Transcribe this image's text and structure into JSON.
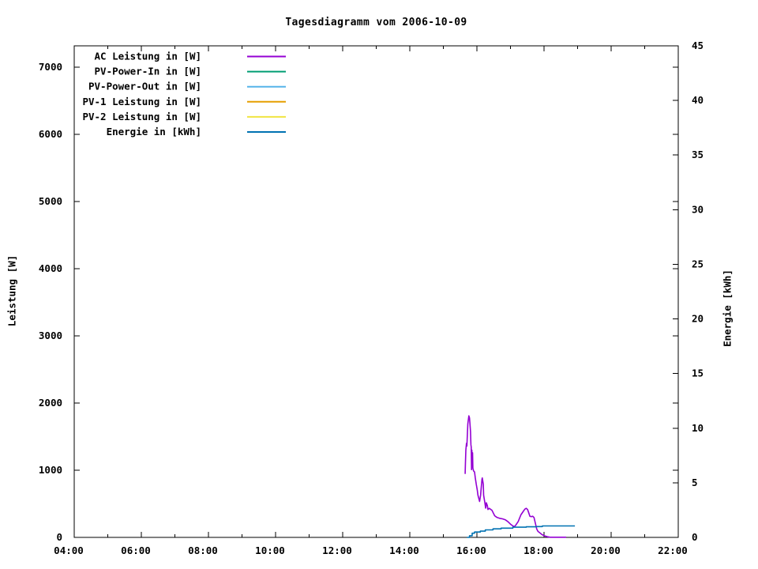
{
  "chart_data": {
    "type": "line",
    "title": "Tagesdiagramm vom 2006-10-09",
    "grid": false,
    "legend_position": "top-left-inside",
    "x_axis": {
      "range_hours": [
        4,
        22
      ],
      "major_tick_hours": [
        4,
        6,
        8,
        10,
        12,
        14,
        16,
        18,
        20,
        22
      ],
      "major_tick_labels": [
        "04:00",
        "06:00",
        "08:00",
        "10:00",
        "12:00",
        "14:00",
        "16:00",
        "18:00",
        "20:00",
        "22:00"
      ],
      "minor_tick_hours": [
        5,
        7,
        9,
        11,
        13,
        15,
        17,
        19,
        21
      ]
    },
    "y_left": {
      "label": "Leistung [W]",
      "ticks": [
        0,
        1000,
        2000,
        3000,
        4000,
        5000,
        6000,
        7000
      ],
      "range": [
        0,
        7320
      ]
    },
    "y_right": {
      "label": "Energie [kWh]",
      "ticks": [
        0,
        5,
        10,
        15,
        20,
        25,
        30,
        35,
        40,
        45
      ],
      "range": [
        0,
        45
      ]
    },
    "legend": [
      {
        "label": "AC Leistung in [W]",
        "color": "#9400d3"
      },
      {
        "label": "PV-Power-In in [W]",
        "color": "#009e73"
      },
      {
        "label": "PV-Power-Out in [W]",
        "color": "#56b4e9"
      },
      {
        "label": "PV-1 Leistung in [W]",
        "color": "#e69f00"
      },
      {
        "label": "PV-2 Leistung in [W]",
        "color": "#f0e442"
      },
      {
        "label": "Energie in [kWh]",
        "color": "#0072b2"
      }
    ],
    "series": [
      {
        "id": "ac-leistung",
        "name": "AC Leistung in [W]",
        "color": "#9400d3",
        "axis": "left",
        "interpolation": "linear",
        "points": [
          [
            15.65,
            945
          ],
          [
            15.66,
            1120
          ],
          [
            15.67,
            1300
          ],
          [
            15.69,
            1400
          ],
          [
            15.7,
            1360
          ],
          [
            15.73,
            1690
          ],
          [
            15.76,
            1810
          ],
          [
            15.78,
            1780
          ],
          [
            15.79,
            1710
          ],
          [
            15.81,
            1575
          ],
          [
            15.82,
            1380
          ],
          [
            15.83,
            1345
          ],
          [
            15.84,
            1010
          ],
          [
            15.85,
            1300
          ],
          [
            15.86,
            1050
          ],
          [
            15.87,
            1260
          ],
          [
            15.88,
            1030
          ],
          [
            15.9,
            990
          ],
          [
            15.93,
            975
          ],
          [
            15.95,
            890
          ],
          [
            15.98,
            790
          ],
          [
            16.01,
            710
          ],
          [
            16.03,
            630
          ],
          [
            16.06,
            575
          ],
          [
            16.08,
            535
          ],
          [
            16.11,
            630
          ],
          [
            16.12,
            690
          ],
          [
            16.15,
            865
          ],
          [
            16.16,
            885
          ],
          [
            16.19,
            790
          ],
          [
            16.2,
            630
          ],
          [
            16.23,
            535
          ],
          [
            16.26,
            435
          ],
          [
            16.28,
            515
          ],
          [
            16.31,
            475
          ],
          [
            16.33,
            415
          ],
          [
            16.37,
            433
          ],
          [
            16.45,
            402
          ],
          [
            16.53,
            323
          ],
          [
            16.6,
            296
          ],
          [
            16.68,
            284
          ],
          [
            16.76,
            276
          ],
          [
            16.84,
            264
          ],
          [
            16.92,
            237
          ],
          [
            17.0,
            198
          ],
          [
            17.07,
            171
          ],
          [
            17.11,
            159
          ],
          [
            17.15,
            178
          ],
          [
            17.23,
            237
          ],
          [
            17.31,
            335
          ],
          [
            17.39,
            394
          ],
          [
            17.43,
            421
          ],
          [
            17.47,
            433
          ],
          [
            17.51,
            414
          ],
          [
            17.54,
            374
          ],
          [
            17.58,
            315
          ],
          [
            17.62,
            308
          ],
          [
            17.66,
            315
          ],
          [
            17.7,
            296
          ],
          [
            17.74,
            218
          ],
          [
            17.78,
            127
          ],
          [
            17.82,
            88
          ],
          [
            17.86,
            73
          ],
          [
            17.94,
            41
          ],
          [
            18.02,
            21
          ],
          [
            18.1,
            9
          ],
          [
            18.18,
            2
          ],
          [
            18.66,
            2
          ]
        ]
      },
      {
        "id": "energie",
        "name": "Energie in [kWh]",
        "color": "#0072b2",
        "axis": "right",
        "interpolation": "step-after",
        "points": [
          [
            15.7,
            0.0
          ],
          [
            15.78,
            0.15
          ],
          [
            15.86,
            0.38
          ],
          [
            15.93,
            0.49
          ],
          [
            16.1,
            0.57
          ],
          [
            16.25,
            0.69
          ],
          [
            16.48,
            0.78
          ],
          [
            16.72,
            0.85
          ],
          [
            17.07,
            0.93
          ],
          [
            17.47,
            0.97
          ],
          [
            17.78,
            0.99
          ],
          [
            17.95,
            1.05
          ],
          [
            18.92,
            1.05
          ]
        ]
      }
    ]
  }
}
